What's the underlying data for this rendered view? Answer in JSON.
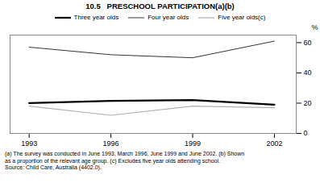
{
  "chart_data": {
    "type": "line",
    "title": "10.5   PRESCHOOL PARTICIPATION(a)(b)",
    "x": [
      1993,
      1996,
      1999,
      2002
    ],
    "series": [
      {
        "name": "Three year olds",
        "color": "#000000",
        "values": [
          20,
          21.5,
          22,
          19
        ]
      },
      {
        "name": "Four year olds",
        "color": "#000000",
        "values": [
          57,
          52,
          50,
          61
        ]
      },
      {
        "name": "Five year olds(c)",
        "color": "#b0b0b0",
        "values": [
          18,
          12,
          18,
          17
        ]
      }
    ],
    "xlim": [
      1992.3,
      2002.8
    ],
    "xticks": [
      1993,
      1996,
      1999,
      2002
    ],
    "ylim": [
      0,
      65
    ],
    "yticks": [
      0,
      20,
      40,
      60
    ],
    "ylabel": "%",
    "legend": "top",
    "annotations": [
      "(a) The survey was conducted in June 1993, March 1996, June 1999 and June 2002. (b) Shown",
      "as a proportion of the relevant age group.  (c) Excludes five year olds attending school.",
      "Source: Child Care, Australia (4402.0)."
    ]
  }
}
